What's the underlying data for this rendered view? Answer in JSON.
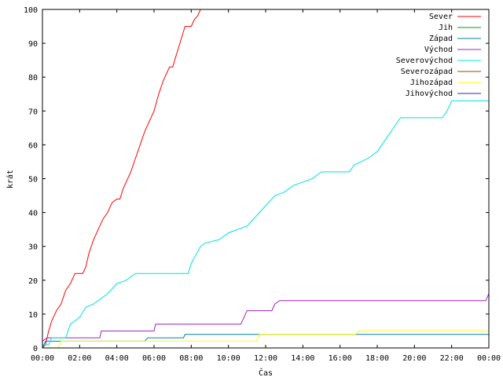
{
  "chart_data": {
    "type": "line",
    "title": "",
    "xlabel": "Čas",
    "ylabel": "krát",
    "xlim": [
      "00:00",
      "24:00"
    ],
    "ylim": [
      0,
      100
    ],
    "x_ticks": [
      "00:00",
      "02:00",
      "04:00",
      "06:00",
      "08:00",
      "10:00",
      "12:00",
      "14:00",
      "16:00",
      "18:00",
      "20:00",
      "22:00",
      "00:00"
    ],
    "y_ticks": [
      "0",
      "10",
      "20",
      "30",
      "40",
      "50",
      "60",
      "70",
      "80",
      "90",
      "100"
    ],
    "grid": false,
    "legend_position": "top-right",
    "series": [
      {
        "name": "Sever",
        "color": "#ff0000",
        "points": [
          [
            "00:00",
            0
          ],
          [
            "00:10",
            1
          ],
          [
            "00:20",
            5
          ],
          [
            "00:30",
            8
          ],
          [
            "00:45",
            11
          ],
          [
            "01:00",
            13
          ],
          [
            "01:15",
            17
          ],
          [
            "01:30",
            19
          ],
          [
            "01:45",
            22
          ],
          [
            "02:00",
            22
          ],
          [
            "02:10",
            22
          ],
          [
            "02:20",
            24
          ],
          [
            "02:30",
            28
          ],
          [
            "02:45",
            32
          ],
          [
            "03:00",
            35
          ],
          [
            "03:15",
            38
          ],
          [
            "03:30",
            40
          ],
          [
            "03:45",
            43
          ],
          [
            "04:00",
            44
          ],
          [
            "04:10",
            44
          ],
          [
            "04:20",
            47
          ],
          [
            "04:30",
            49
          ],
          [
            "04:45",
            52
          ],
          [
            "05:00",
            56
          ],
          [
            "05:15",
            60
          ],
          [
            "05:30",
            64
          ],
          [
            "05:45",
            67
          ],
          [
            "06:00",
            70
          ],
          [
            "06:15",
            75
          ],
          [
            "06:30",
            79
          ],
          [
            "06:40",
            81
          ],
          [
            "06:50",
            83
          ],
          [
            "07:00",
            83
          ],
          [
            "07:10",
            86
          ],
          [
            "07:20",
            89
          ],
          [
            "07:30",
            92
          ],
          [
            "07:40",
            95
          ],
          [
            "08:00",
            95
          ],
          [
            "08:10",
            97
          ],
          [
            "08:20",
            98
          ],
          [
            "08:30",
            100
          ]
        ]
      },
      {
        "name": "Jih",
        "color": "#00a000",
        "points": []
      },
      {
        "name": "Západ",
        "color": "#0080a0",
        "points": [
          [
            "00:00",
            0
          ],
          [
            "00:05",
            1
          ],
          [
            "00:10",
            2
          ],
          [
            "05:30",
            2
          ],
          [
            "05:40",
            3
          ],
          [
            "07:35",
            3
          ],
          [
            "07:40",
            4
          ],
          [
            "24:00",
            4
          ]
        ]
      },
      {
        "name": "Východ",
        "color": "#a020c0",
        "points": [
          [
            "00:00",
            2
          ],
          [
            "00:15",
            3
          ],
          [
            "03:05",
            3
          ],
          [
            "03:10",
            5
          ],
          [
            "06:00",
            5
          ],
          [
            "06:05",
            7
          ],
          [
            "10:40",
            7
          ],
          [
            "10:50",
            9
          ],
          [
            "11:00",
            11
          ],
          [
            "12:20",
            11
          ],
          [
            "12:30",
            13
          ],
          [
            "12:45",
            14
          ],
          [
            "23:50",
            14
          ],
          [
            "24:00",
            16
          ]
        ]
      },
      {
        "name": "Severovýchod",
        "color": "#00e0e0",
        "points": [
          [
            "00:00",
            1
          ],
          [
            "00:20",
            1
          ],
          [
            "00:30",
            3
          ],
          [
            "01:15",
            3
          ],
          [
            "01:30",
            7
          ],
          [
            "02:00",
            9
          ],
          [
            "02:20",
            12
          ],
          [
            "02:45",
            13
          ],
          [
            "03:00",
            14
          ],
          [
            "03:30",
            16
          ],
          [
            "04:00",
            19
          ],
          [
            "04:30",
            20
          ],
          [
            "05:00",
            22
          ],
          [
            "07:50",
            22
          ],
          [
            "08:00",
            25
          ],
          [
            "08:30",
            30
          ],
          [
            "08:45",
            31
          ],
          [
            "09:30",
            32
          ],
          [
            "10:00",
            34
          ],
          [
            "11:00",
            36
          ],
          [
            "11:30",
            39
          ],
          [
            "12:00",
            42
          ],
          [
            "12:30",
            45
          ],
          [
            "13:00",
            46
          ],
          [
            "13:30",
            48
          ],
          [
            "14:30",
            50
          ],
          [
            "15:00",
            52
          ],
          [
            "16:30",
            52
          ],
          [
            "16:45",
            54
          ],
          [
            "17:30",
            56
          ],
          [
            "18:00",
            58
          ],
          [
            "18:30",
            62
          ],
          [
            "19:00",
            66
          ],
          [
            "19:15",
            68
          ],
          [
            "21:30",
            68
          ],
          [
            "21:45",
            70
          ],
          [
            "22:00",
            73
          ],
          [
            "24:00",
            73
          ]
        ]
      },
      {
        "name": "Severozápad",
        "color": "#a04000",
        "points": []
      },
      {
        "name": "Jihozápad",
        "color": "#ffff00",
        "points": [
          [
            "00:00",
            0
          ],
          [
            "00:50",
            0
          ],
          [
            "01:00",
            2
          ],
          [
            "11:30",
            2
          ],
          [
            "11:40",
            4
          ],
          [
            "16:50",
            4
          ],
          [
            "17:00",
            5
          ],
          [
            "24:00",
            5
          ]
        ]
      },
      {
        "name": "Jihovýchod",
        "color": "#4020a0",
        "points": []
      }
    ]
  }
}
